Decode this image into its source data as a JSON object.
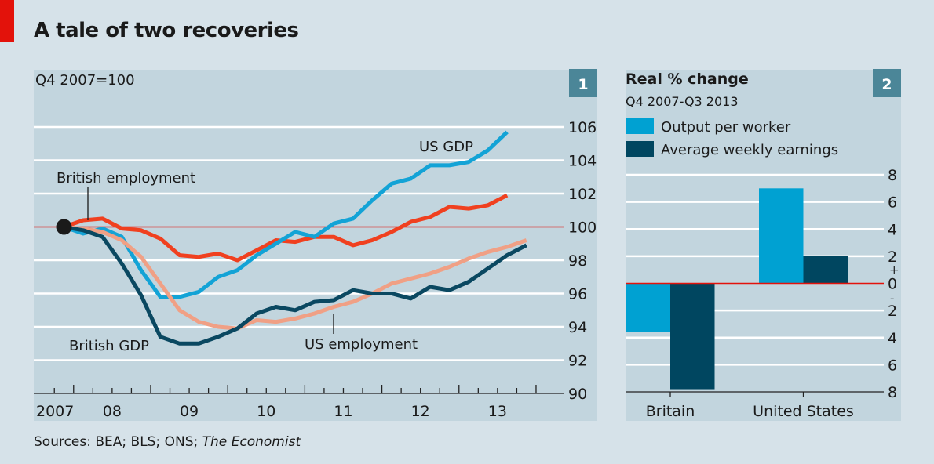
{
  "title": "A tale of two recoveries",
  "source": {
    "prefix": "Sources: BEA; BLS; ONS; ",
    "italic": "The Economist"
  },
  "colors": {
    "us_gdp": "#13a3d6",
    "british_employment": "#f0401f",
    "us_employment": "#f0a085",
    "british_gdp": "#0a4861",
    "output_per_worker": "#00a1d2",
    "average_weekly_earnings": "#004660",
    "zero_line": "#e3120b",
    "badge": "#4b8698",
    "panel": "#c2d5de"
  },
  "chart_data": [
    {
      "type": "line",
      "badge": "1",
      "subtitle": "Q4 2007=100",
      "ylim": [
        90,
        106
      ],
      "yticks": [
        "106",
        "104",
        "102",
        "100",
        "98",
        "96",
        "94",
        "92",
        "90"
      ],
      "yticks_values": [
        106,
        104,
        102,
        100,
        98,
        96,
        94,
        92,
        90
      ],
      "reference_line": 100,
      "xtick_labels": [
        "2007",
        "08",
        "09",
        "10",
        "11",
        "12",
        "13"
      ],
      "x": [
        "Q4 2007",
        "Q1 2008",
        "Q2 2008",
        "Q3 2008",
        "Q4 2008",
        "Q1 2009",
        "Q2 2009",
        "Q3 2009",
        "Q4 2009",
        "Q1 2010",
        "Q2 2010",
        "Q3 2010",
        "Q4 2010",
        "Q1 2011",
        "Q2 2011",
        "Q3 2011",
        "Q4 2011",
        "Q1 2012",
        "Q2 2012",
        "Q3 2012",
        "Q4 2012",
        "Q1 2013",
        "Q2 2013",
        "Q3 2013",
        "Q4 2013"
      ],
      "grid": true,
      "series": [
        {
          "name": "US GDP",
          "label": "US GDP",
          "color_key": "us_gdp",
          "values": [
            100,
            99.6,
            99.9,
            99.4,
            97.4,
            95.8,
            95.8,
            96.1,
            97.0,
            97.4,
            98.3,
            99.0,
            99.7,
            99.4,
            100.2,
            100.5,
            101.6,
            102.6,
            102.9,
            103.7,
            103.7,
            103.9,
            104.6,
            105.7,
            null
          ]
        },
        {
          "name": "British employment",
          "label": "British employment",
          "color_key": "british_employment",
          "values": [
            100,
            100.4,
            100.5,
            99.9,
            99.8,
            99.3,
            98.3,
            98.2,
            98.4,
            98.0,
            98.6,
            99.2,
            99.1,
            99.4,
            99.4,
            98.9,
            99.2,
            99.7,
            100.3,
            100.6,
            101.2,
            101.1,
            101.3,
            101.9,
            null
          ]
        },
        {
          "name": "US employment",
          "label": "US employment",
          "color_key": "us_employment",
          "values": [
            100,
            99.9,
            99.7,
            99.2,
            98.2,
            96.6,
            95.0,
            94.3,
            94.0,
            93.9,
            94.4,
            94.3,
            94.5,
            94.8,
            95.2,
            95.5,
            96.0,
            96.6,
            96.9,
            97.2,
            97.6,
            98.1,
            98.5,
            98.8,
            99.2
          ]
        },
        {
          "name": "British GDP",
          "label": "British GDP",
          "color_key": "british_gdp",
          "values": [
            100,
            99.8,
            99.4,
            97.8,
            95.9,
            93.4,
            93.0,
            93.0,
            93.4,
            93.9,
            94.8,
            95.2,
            95.0,
            95.5,
            95.6,
            96.2,
            96.0,
            96.0,
            95.7,
            96.4,
            96.2,
            96.7,
            97.5,
            98.3,
            98.9
          ]
        }
      ]
    },
    {
      "type": "bar",
      "badge": "2",
      "title": "Real % change",
      "subtitle": "Q4 2007-Q3 2013",
      "categories": [
        "Britain",
        "United States"
      ],
      "ylim": [
        -8,
        8
      ],
      "yticks": [
        "8",
        "6",
        "4",
        "2",
        "0",
        "2",
        "4",
        "6",
        "8"
      ],
      "yticks_values": [
        8,
        6,
        4,
        2,
        0,
        -2,
        -4,
        -6,
        -8
      ],
      "plus_sign": "+",
      "minus_sign": "-",
      "legend_position": "top-left",
      "grid": true,
      "series": [
        {
          "name": "Output per worker",
          "color_key": "output_per_worker",
          "values": [
            -3.6,
            7.0
          ]
        },
        {
          "name": "Average weekly earnings",
          "color_key": "average_weekly_earnings",
          "values": [
            -7.8,
            2.0
          ]
        }
      ]
    }
  ]
}
